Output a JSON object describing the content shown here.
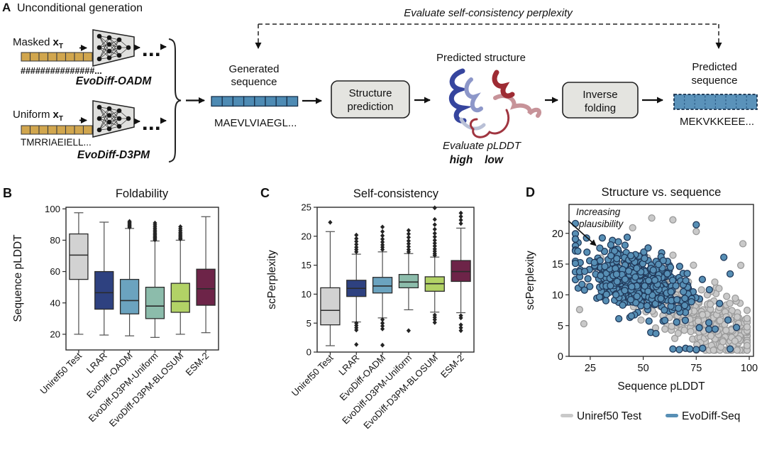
{
  "colors": {
    "gold": "#d1a64e",
    "gold_text": "#cfa449",
    "seq_blue": "#4e8bb4",
    "seq_bar_blue": "#5a92ba",
    "seq_text_blue": "#5b9bc8",
    "box_fill": "#e4e4e0",
    "high": "#2e3f9f",
    "low": "#b13439",
    "outline": "#222222"
  },
  "panelA": {
    "label": "A",
    "title": "Unconditional generation",
    "masked": {
      "prefix": "Masked",
      "var": "x",
      "sub": "T",
      "seq": "###############...",
      "model": "EvoDiff-OADM"
    },
    "uniform": {
      "prefix": "Uniform",
      "var": "x",
      "sub": "T",
      "seq": "TMRRIAEIELL...",
      "model": "EvoDiff-D3PM"
    },
    "feedback_label": "Evaluate self-consistency perplexity",
    "generated": {
      "line1": "Generated",
      "line2": "sequence",
      "seq": "MAEVLVIAEGL..."
    },
    "structure_box": {
      "line1": "Structure",
      "line2": "prediction"
    },
    "predicted_structure": "Predicted structure",
    "evaluate_plddt": "Evaluate pLDDT",
    "high": "high",
    "low": "low",
    "inverse_box": {
      "line1": "Inverse",
      "line2": "folding"
    },
    "predicted_sequence": {
      "line1": "Predicted",
      "line2": "sequence",
      "seq": "MEKVKKEEE..."
    }
  },
  "chart_data": [
    {
      "id": "foldability",
      "panel_label": "B",
      "type": "boxplot",
      "title": "Foldability",
      "ylabel": "Sequence pLDDT",
      "ylim": [
        10,
        101
      ],
      "yticks": [
        20,
        40,
        60,
        80,
        100
      ],
      "grid": false,
      "categories": [
        "Uniref50 Test",
        "LRAR",
        "EvoDiff-OADM",
        "EvoDiff-D3PM-Uniform",
        "EvoDiff-D3PM-BLOSUM",
        "ESM-2"
      ],
      "colors": [
        "#d2d2d2",
        "#2e4180",
        "#6ba3bf",
        "#8cbcab",
        "#b2d266",
        "#6d2448"
      ],
      "boxes": [
        {
          "whislo": 20,
          "q1": 55,
          "med": 70.5,
          "q3": 84,
          "whishi": 97.5,
          "fliers": []
        },
        {
          "whislo": 19.5,
          "q1": 36,
          "med": 46.5,
          "q3": 60,
          "whishi": 91.5,
          "fliers": []
        },
        {
          "whislo": 19,
          "q1": 33,
          "med": 41.5,
          "q3": 55,
          "whishi": 87.5,
          "fliers": [
            88.2,
            88.9,
            89.6,
            90.4,
            91.2,
            92
          ]
        },
        {
          "whislo": 18,
          "q1": 30,
          "med": 38,
          "q3": 50,
          "whishi": 79.5,
          "fliers": [
            80.2,
            81,
            81.8,
            82.6,
            83.5,
            84.4,
            85.4,
            86.4,
            87.5,
            88.6,
            89.8,
            91
          ]
        },
        {
          "whislo": 20,
          "q1": 34,
          "med": 41,
          "q3": 52.5,
          "whishi": 80,
          "fliers": [
            80.7,
            81.4,
            82.2,
            83.1,
            84,
            85,
            86.1,
            87.3,
            88.6
          ]
        },
        {
          "whislo": 21,
          "q1": 38.5,
          "med": 49,
          "q3": 61.5,
          "whishi": 95,
          "fliers": []
        }
      ]
    },
    {
      "id": "self_consistency",
      "panel_label": "C",
      "type": "boxplot",
      "title": "Self-consistency",
      "ylabel": "scPerplexity",
      "ylim": [
        0,
        25
      ],
      "yticks": [
        0,
        5,
        10,
        15,
        20,
        25
      ],
      "grid": false,
      "categories": [
        "Uniref50 Test",
        "LRAR",
        "EvoDiff-OADM",
        "EvoDiff-D3PM-Uniform",
        "EvoDiff-D3PM-BLOSUM",
        "ESM-2"
      ],
      "colors": [
        "#d2d2d2",
        "#2e4180",
        "#6ba3bf",
        "#8cbcab",
        "#b2d266",
        "#6d2448"
      ],
      "boxes": [
        {
          "whislo": 1.1,
          "q1": 4.7,
          "med": 7.2,
          "q3": 11.1,
          "whishi": 20.8,
          "fliers": [
            22.4
          ]
        },
        {
          "whislo": 5.2,
          "q1": 9.6,
          "med": 11,
          "q3": 12.4,
          "whishi": 16.9,
          "fliers": [
            17.3,
            17.7,
            18.1,
            18.6,
            19.1,
            19.6,
            20.2,
            1.3,
            3.8,
            4.2,
            4.6,
            5
          ]
        },
        {
          "whislo": 5.9,
          "q1": 10.2,
          "med": 11.4,
          "q3": 12.9,
          "whishi": 17.3,
          "fliers": [
            17.7,
            18.1,
            18.5,
            19,
            19.5,
            20.1,
            20.8,
            21.6,
            1.2,
            4,
            4.5,
            5,
            5.6
          ]
        },
        {
          "whislo": 7.3,
          "q1": 11.1,
          "med": 12.1,
          "q3": 13.4,
          "whishi": 17,
          "fliers": [
            17.3,
            17.7,
            18.2,
            18.7,
            19.2,
            19.8,
            20.4,
            21,
            3.7
          ]
        },
        {
          "whislo": 6.9,
          "q1": 10.5,
          "med": 11.8,
          "q3": 13,
          "whishi": 16.4,
          "fliers": [
            16.7,
            17,
            17.4,
            17.8,
            18.3,
            18.8,
            19.3,
            19.9,
            20.5,
            21.2,
            22,
            22.9,
            24.9,
            5.1,
            5.6,
            6,
            6.4
          ]
        },
        {
          "whislo": 6.8,
          "q1": 12.2,
          "med": 13.9,
          "q3": 15.8,
          "whishi": 21.4,
          "fliers": [
            22.2,
            22.8,
            23.4,
            24,
            3.7,
            4.2,
            4.7,
            5.9,
            6.3
          ]
        }
      ]
    },
    {
      "id": "structure_vs_sequence",
      "panel_label": "D",
      "type": "scatter",
      "title": "Structure vs. sequence",
      "xlabel": "Sequence pLDDT",
      "ylabel": "scPerplexity",
      "xlim": [
        15,
        102
      ],
      "ylim": [
        0,
        24.7
      ],
      "xticks": [
        25,
        50,
        75,
        100
      ],
      "yticks": [
        0,
        5,
        10,
        15,
        20
      ],
      "grid": false,
      "annotation": {
        "line1": "Increasing",
        "line2": "plausibility"
      },
      "series": [
        {
          "name": "Uniref50 Test",
          "color": "#c9c9c9",
          "edge": "#9b9b9b",
          "n": 400,
          "seed": 7,
          "x_mean": 77,
          "x_sd": 15,
          "x_min": 19,
          "x_max": 99,
          "intercept": 18.2,
          "slope": -0.155,
          "noise": 2.5,
          "y_min": 1,
          "y_max": 22.6,
          "extra": [
            [
              54,
              22.5
            ],
            [
              64,
              22.2
            ],
            [
              45,
              20.9
            ],
            [
              75,
              20.3
            ],
            [
              97,
              18.3
            ],
            [
              20,
              7.6
            ],
            [
              22,
              5.3
            ],
            [
              30,
              16
            ],
            [
              96,
              14.8
            ]
          ]
        },
        {
          "name": "EvoDiff-Seq",
          "color": "#578fb5",
          "edge": "#20395a",
          "n": 460,
          "seed": 13,
          "x_mean": 45,
          "x_sd": 14,
          "x_min": 18,
          "x_max": 93,
          "intercept": 16.9,
          "slope": -0.1,
          "noise": 2.5,
          "y_min": 1,
          "y_max": 21.6,
          "extra": [
            [
              75,
              21.4
            ],
            [
              64,
              1.2
            ],
            [
              67,
              1.1
            ],
            [
              70,
              1.3
            ],
            [
              72,
              1.2
            ],
            [
              75,
              1.1
            ],
            [
              78,
              1.3
            ],
            [
              91,
              1.2
            ],
            [
              88,
              16.1
            ],
            [
              91,
              13.4
            ],
            [
              86,
              8.6
            ],
            [
              94,
              4.7
            ],
            [
              90,
              5.9
            ],
            [
              56,
              3.7
            ]
          ]
        }
      ],
      "legend": [
        {
          "label": "Uniref50 Test"
        },
        {
          "label": "EvoDiff-Seq"
        }
      ]
    }
  ]
}
